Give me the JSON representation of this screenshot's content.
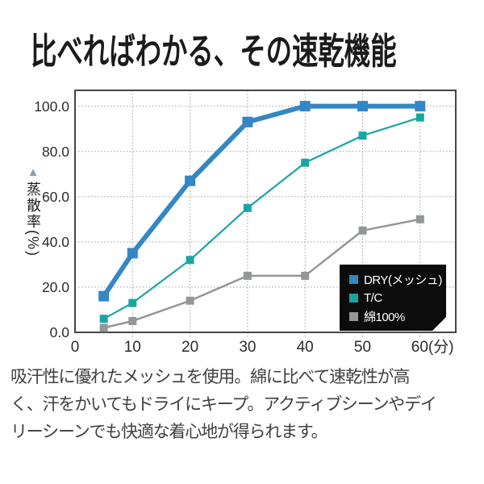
{
  "page": {
    "background": "#ffffff"
  },
  "title": {
    "text": "比べればわかる、その速乾機能"
  },
  "chart_data": {
    "type": "line",
    "title": "",
    "xlabel": "(分)",
    "ylabel": "蒸散率(%)",
    "x": [
      5,
      10,
      20,
      30,
      40,
      50,
      60
    ],
    "series": [
      {
        "name": "DRY(メッシュ)",
        "color": "#3487c4",
        "values": [
          16,
          35,
          67,
          93,
          100,
          100,
          100
        ]
      },
      {
        "name": "T/C",
        "color": "#1ba5a2",
        "values": [
          6,
          13,
          32,
          55,
          75,
          87,
          95
        ]
      },
      {
        "name": "綿100%",
        "color": "#939699",
        "values": [
          2,
          5,
          14,
          25,
          25,
          45,
          50
        ]
      }
    ],
    "x_ticks": {
      "values": [
        0,
        10,
        20,
        30,
        40,
        50,
        60
      ],
      "labels": [
        "0",
        "10",
        "20",
        "30",
        "40",
        "50",
        "60(分)"
      ]
    },
    "y_ticks": {
      "values": [
        0,
        20,
        40,
        60,
        80,
        100
      ],
      "labels": [
        "0.0",
        "20.0",
        "40.0",
        "60.0",
        "80.0",
        "100.0"
      ]
    },
    "xlim": [
      0,
      66.2
    ],
    "ylim": [
      0,
      107
    ],
    "grid": true,
    "grid_style": "dotted",
    "grid_color": "#9f9f9f",
    "frame_color": "#454545",
    "legend_position": "inside-bottom-right",
    "legend_bg": "#0c0c0c",
    "legend_text_color": "#ffffff",
    "y_axis_marker_color": "#8e9dab"
  },
  "description": {
    "text": "吸汗性に優れたメッシュを使用。綿に比べて速乾性が高\nく、汗をかいてもドライにキープ。アクティブシーンやデイ\nリーシーンでも快適な着心地が得られます。"
  }
}
